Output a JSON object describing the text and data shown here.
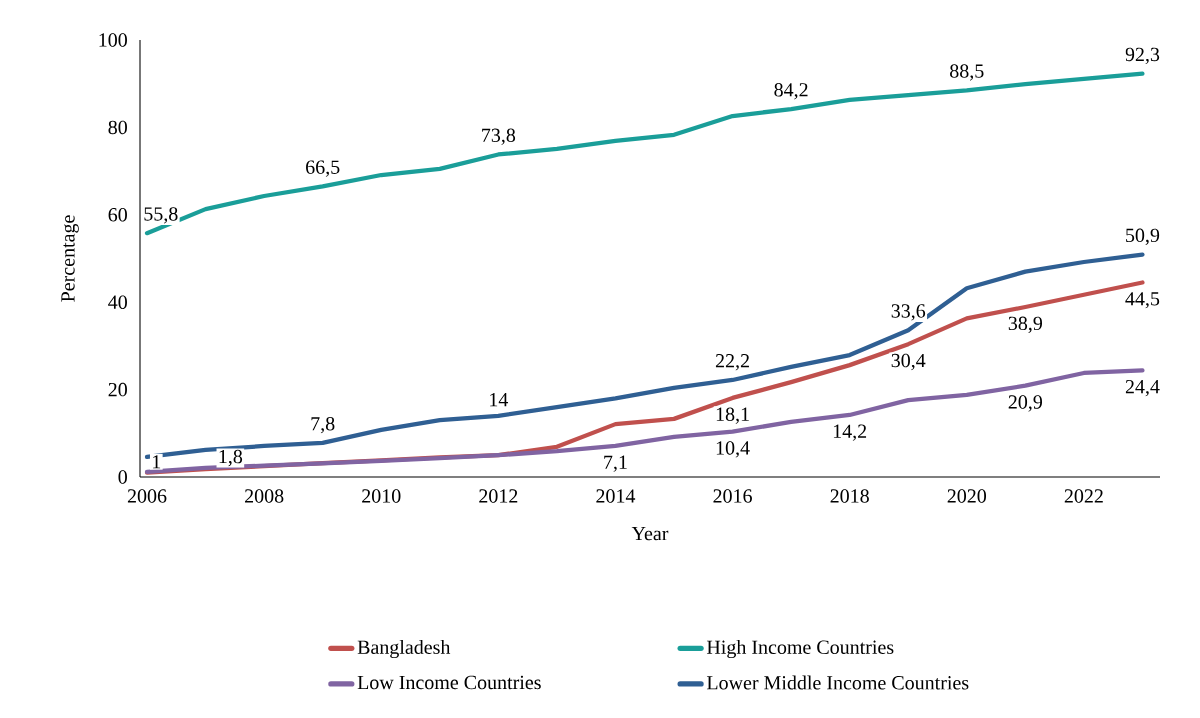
{
  "chart_data": {
    "type": "line",
    "xlabel": "Year",
    "ylabel": "Percentage",
    "x": [
      2006,
      2007,
      2008,
      2009,
      2010,
      2011,
      2012,
      2013,
      2014,
      2015,
      2016,
      2017,
      2018,
      2019,
      2020,
      2021,
      2022,
      2023
    ],
    "xlim": [
      2005.88,
      2023.3
    ],
    "xticks": [
      2006,
      2008,
      2010,
      2012,
      2014,
      2016,
      2018,
      2020,
      2022
    ],
    "ylim": [
      0,
      100
    ],
    "yticks": [
      0,
      20,
      40,
      60,
      80,
      100
    ],
    "grid": false,
    "legend": "bottom",
    "marker": "none",
    "line_style": "solid",
    "series": [
      {
        "name": "Bangladesh",
        "color": "#c0504d",
        "values": [
          1,
          1.8,
          2.5,
          3.2,
          3.8,
          4.5,
          5.0,
          6.9,
          12.1,
          13.3,
          18.1,
          21.7,
          25.6,
          30.4,
          36.3,
          38.9,
          41.7,
          44.5
        ],
        "value_labels": [
          "1",
          "1,8",
          null,
          null,
          null,
          null,
          null,
          null,
          null,
          null,
          "18,1",
          null,
          null,
          "30,4",
          null,
          "38,9",
          null,
          "44,5"
        ]
      },
      {
        "name": "High Income Countries",
        "color": "#1a9e99",
        "values": [
          55.8,
          61.3,
          64.3,
          66.5,
          69.1,
          70.5,
          73.8,
          75.1,
          76.9,
          78.3,
          82.6,
          84.2,
          86.3,
          87.4,
          88.5,
          89.9,
          91.1,
          92.3
        ],
        "value_labels": [
          "55,8",
          null,
          null,
          "66,5",
          null,
          null,
          "73,8",
          null,
          null,
          null,
          null,
          "84,2",
          null,
          null,
          "88,5",
          null,
          null,
          "92,3"
        ]
      },
      {
        "name": "Low Income Countries",
        "color": "#8064a2",
        "values": [
          1.2,
          2.1,
          2.6,
          3.1,
          3.7,
          4.3,
          5.0,
          5.9,
          7.1,
          9.2,
          10.4,
          12.6,
          14.2,
          17.6,
          18.8,
          20.9,
          23.8,
          24.4
        ],
        "value_labels": [
          null,
          null,
          null,
          null,
          null,
          null,
          null,
          null,
          "7,1",
          null,
          "10,4",
          null,
          "14,2",
          null,
          null,
          "20,9",
          null,
          "24,4"
        ]
      },
      {
        "name": "Lower Middle Income Countries",
        "color": "#2f5f93",
        "values": [
          4.6,
          6.2,
          7.1,
          7.8,
          10.8,
          13.0,
          14,
          16.0,
          18.0,
          20.4,
          22.2,
          25.2,
          27.9,
          33.6,
          43.2,
          47.0,
          49.2,
          50.9
        ],
        "value_labels": [
          null,
          null,
          null,
          "7,8",
          null,
          null,
          "14",
          null,
          null,
          null,
          "22,2",
          null,
          null,
          "33,6",
          null,
          null,
          null,
          "50,9"
        ]
      }
    ]
  }
}
